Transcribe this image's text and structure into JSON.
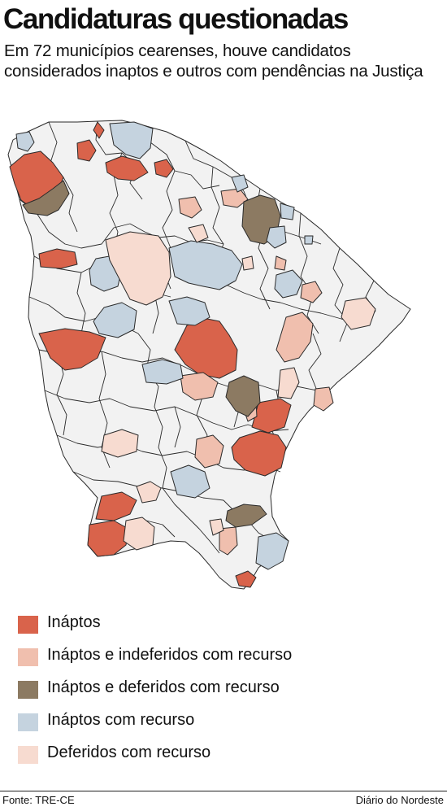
{
  "header": {
    "title": "Candidaturas questionadas",
    "subtitle": "Em 72 municípios cearenses, houve candidatos considerados inaptos e outros com pendências na Justiça"
  },
  "colors": {
    "inaptos": "#d9634b",
    "inaptos_indeferidos": "#f0bfae",
    "inaptos_deferidos": "#8c7a62",
    "inaptos_recurso": "#c5d3df",
    "deferidos_recurso": "#f7dbd0",
    "sem_registro": "#f2f2f2",
    "border": "#2a2a2a"
  },
  "legend": [
    {
      "key": "inaptos",
      "label": "Ináptos"
    },
    {
      "key": "inaptos_indeferidos",
      "label": "Ináptos e indeferidos com recurso"
    },
    {
      "key": "inaptos_deferidos",
      "label": "Ináptos e deferidos com recurso"
    },
    {
      "key": "inaptos_recurso",
      "label": "Ináptos com recurso"
    },
    {
      "key": "deferidos_recurso",
      "label": "Deferidos com recurso"
    }
  ],
  "footer": {
    "source": "Fonte: TRE-CE",
    "credit": "Diário do Nordeste"
  }
}
